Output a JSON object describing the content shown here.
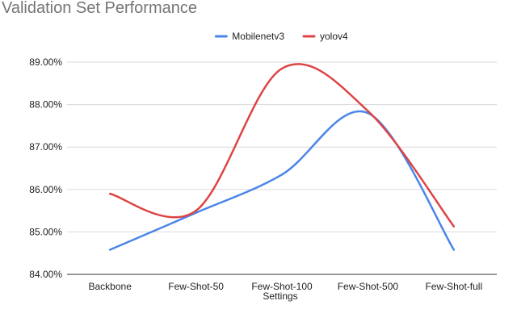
{
  "chart_data": {
    "type": "line",
    "title": "Validation Set Performance",
    "xlabel": "Settings",
    "ylabel": "",
    "categories": [
      "Backbone",
      "Few-Shot-50",
      "Few-Shot-100",
      "Few-Shot-500",
      "Few-Shot-full"
    ],
    "series": [
      {
        "name": "Mobilenetv3",
        "color": "#4a86e8",
        "values": [
          84.58,
          85.45,
          86.35,
          87.8,
          84.58
        ]
      },
      {
        "name": "yolov4",
        "color": "#dd4444",
        "values": [
          85.9,
          85.5,
          88.85,
          87.85,
          85.13
        ]
      }
    ],
    "ylim": [
      84,
      89
    ],
    "yticks": [
      "84.00%",
      "85.00%",
      "86.00%",
      "87.00%",
      "88.00%",
      "89.00%"
    ],
    "grid": true,
    "legend": "top-center",
    "smooth": true
  }
}
